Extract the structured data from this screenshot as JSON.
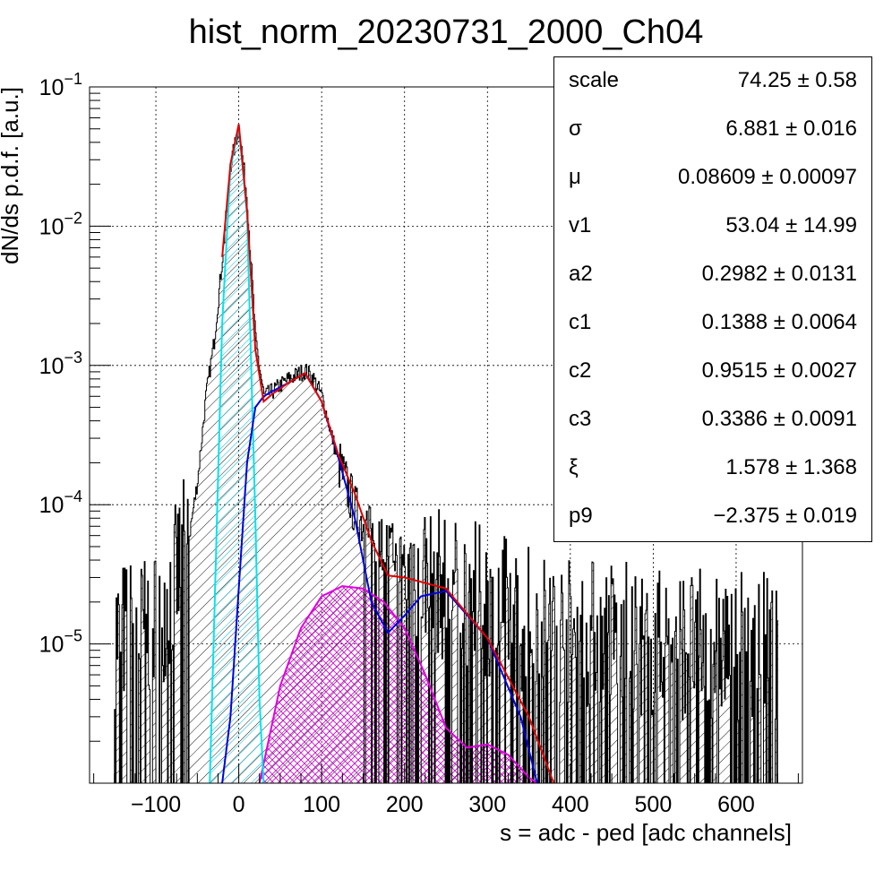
{
  "chart_data": {
    "type": "histogram",
    "title": "hist_norm_20230731_2000_Ch04",
    "xlabel": "s = adc - ped [adc channels]",
    "ylabel": "dN/ds p.d.f. [a.u.]",
    "xlim": [
      -180,
      680
    ],
    "ylim": [
      1e-06,
      0.1
    ],
    "yscale": "log",
    "grid": true,
    "x_ticks": [
      -100,
      0,
      100,
      200,
      300,
      400,
      500,
      600
    ],
    "x_tick_labels": [
      "−100",
      "0",
      "100",
      "200",
      "300",
      "400",
      "500",
      "600"
    ],
    "y_ticks": [
      1e-05,
      0.0001,
      0.001,
      0.01,
      0.1
    ],
    "y_tick_labels": [
      {
        "base": "10",
        "exp": "−5"
      },
      {
        "base": "10",
        "exp": "−4"
      },
      {
        "base": "10",
        "exp": "−3"
      },
      {
        "base": "10",
        "exp": "−2"
      },
      {
        "base": "10",
        "exp": "−1"
      }
    ],
    "series": [
      {
        "role": "data",
        "color": "#000000",
        "x": [
          -150,
          -120,
          -100,
          -80,
          -60,
          -50,
          -40,
          -30,
          -20,
          -10,
          0,
          10,
          20,
          30,
          40,
          60,
          80,
          90,
          100,
          120,
          140,
          160,
          180,
          200,
          250,
          300,
          350,
          400,
          450,
          500,
          550,
          600,
          650
        ],
        "y": [
          1.2e-05,
          1.2e-05,
          1.5e-05,
          2.5e-05,
          6e-05,
          0.00015,
          0.0006,
          0.0015,
          0.006,
          0.028,
          0.052,
          0.015,
          0.0015,
          0.0006,
          0.00065,
          0.0008,
          0.00092,
          0.0008,
          0.0006,
          0.0002,
          9e-05,
          6e-05,
          5e-05,
          4e-05,
          2.5e-05,
          2e-05,
          1.5e-05,
          1.2e-05,
          1.2e-05,
          1e-05,
          1e-05,
          1e-05,
          1e-05
        ]
      },
      {
        "role": "total-fit",
        "color": "#e00000",
        "x": [
          -20,
          -10,
          0,
          10,
          20,
          30,
          40,
          60,
          80,
          100,
          120,
          140,
          160,
          180,
          200,
          250,
          300,
          350,
          380
        ],
        "y": [
          0.006,
          0.028,
          0.054,
          0.013,
          0.0013,
          0.00055,
          0.00062,
          0.00075,
          0.00088,
          0.00055,
          0.00023,
          0.00012,
          5.5e-05,
          3.1e-05,
          3e-05,
          2.5e-05,
          1.1e-05,
          3e-06,
          1e-06
        ]
      },
      {
        "role": "pedestal-component",
        "color": "#00e5ee",
        "x": [
          -35,
          -30,
          -20,
          -10,
          0,
          10,
          20,
          25,
          30
        ],
        "y": [
          1e-06,
          1.2e-05,
          0.002,
          0.026,
          0.052,
          0.012,
          8e-05,
          4e-06,
          1e-06
        ]
      },
      {
        "role": "single-pe-component",
        "color": "#0000e0",
        "x": [
          -20,
          -10,
          0,
          10,
          20,
          30,
          40,
          60,
          80,
          100,
          120,
          140,
          160,
          180,
          200,
          220,
          250,
          300,
          340,
          360
        ],
        "y": [
          1e-06,
          3e-06,
          2.5e-05,
          0.0002,
          0.0005,
          0.0006,
          0.00065,
          0.00075,
          0.00088,
          0.00055,
          0.00022,
          8e-05,
          2e-05,
          1.2e-05,
          1.6e-05,
          2.2e-05,
          2.4e-05,
          1.1e-05,
          3e-06,
          1e-06
        ]
      },
      {
        "role": "double-pe-component",
        "color": "#e000e0",
        "x": [
          25,
          50,
          75,
          100,
          125,
          150,
          175,
          200,
          225,
          250,
          275,
          300,
          325,
          350,
          360
        ],
        "y": [
          1e-06,
          5e-06,
          1.3e-05,
          2.2e-05,
          2.6e-05,
          2.5e-05,
          2e-05,
          1.3e-05,
          6e-06,
          2.5e-06,
          1.8e-06,
          1.9e-06,
          1.6e-06,
          1.1e-06,
          1e-06
        ]
      }
    ],
    "fit_parameters": [
      {
        "name": "scale",
        "value": "74.25 ± 0.58"
      },
      {
        "name": "σ",
        "value": "6.881 ± 0.016"
      },
      {
        "name": "μ",
        "value": "0.08609 ± 0.00097"
      },
      {
        "name": "v1",
        "value": "53.04 ± 14.99"
      },
      {
        "name": "a2",
        "value": "0.2982 ± 0.0131"
      },
      {
        "name": "c1",
        "value": "0.1388 ± 0.0064"
      },
      {
        "name": "c2",
        "value": "0.9515 ± 0.0027"
      },
      {
        "name": "c3",
        "value": "0.3386 ± 0.0091"
      },
      {
        "name": "ξ",
        "value": "1.578 ± 1.368"
      },
      {
        "name": "p9",
        "value": "−2.375 ± 0.019"
      }
    ],
    "stats_box_position": "top-right"
  }
}
